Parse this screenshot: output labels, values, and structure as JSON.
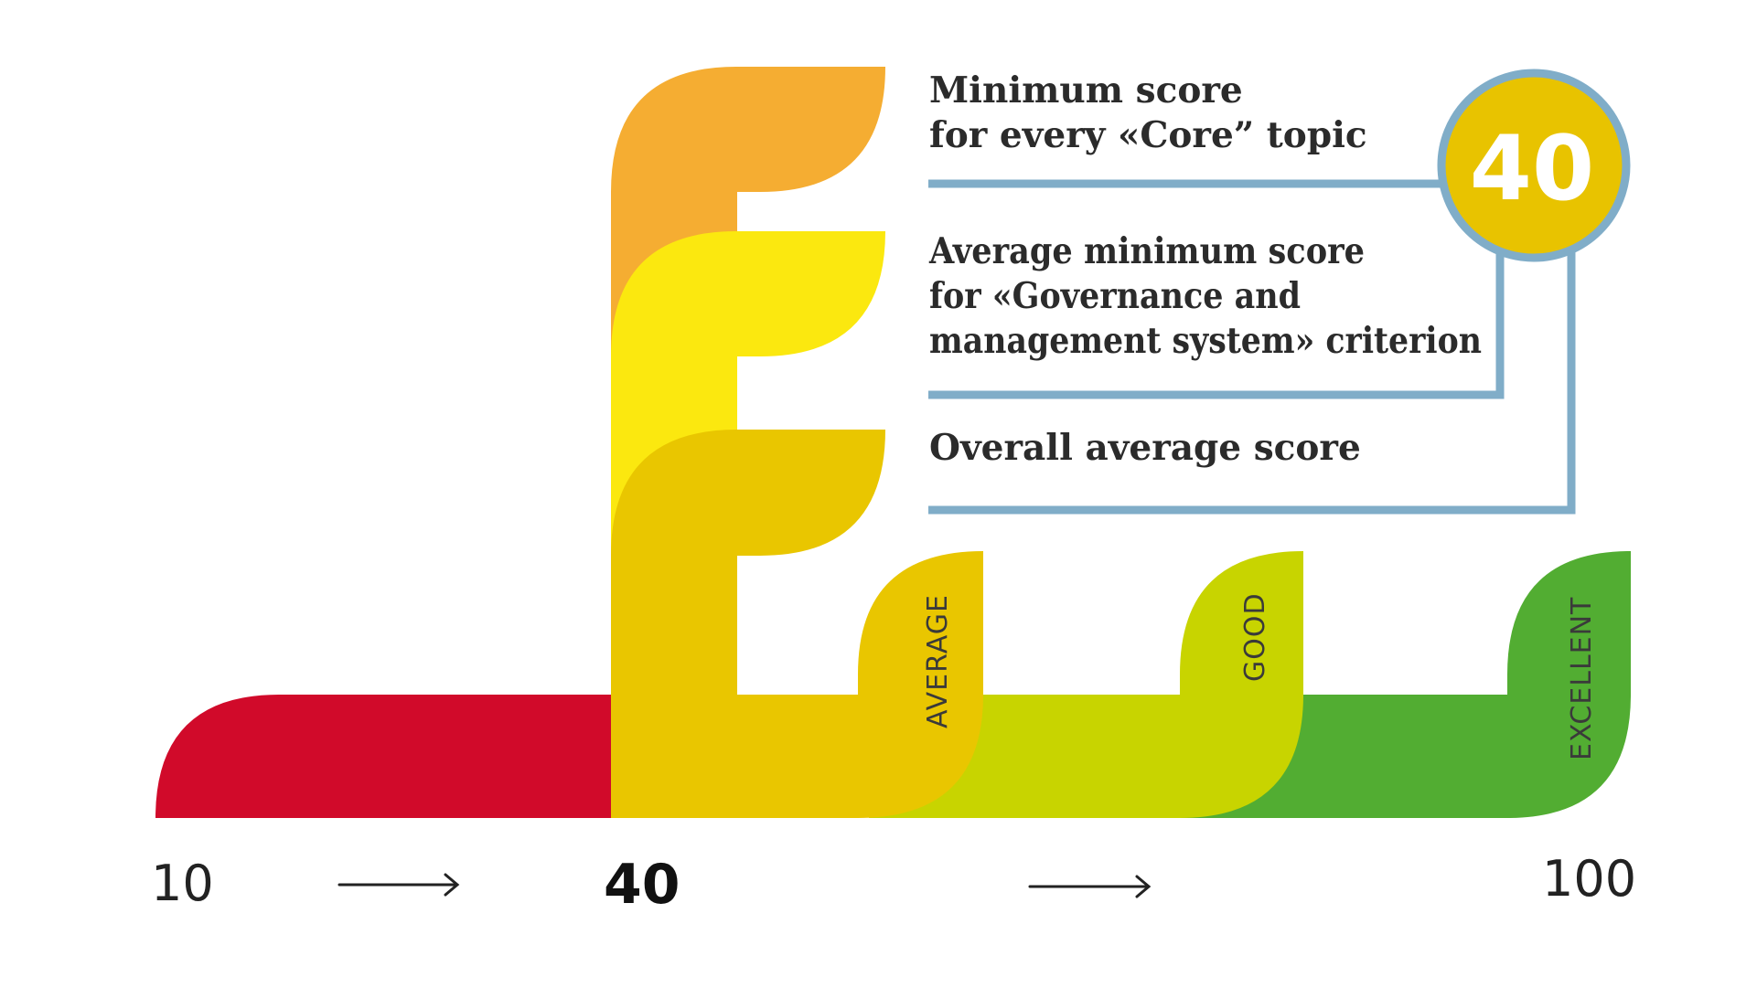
{
  "statements": {
    "core": [
      "Minimum score",
      "for every «Core” topic"
    ],
    "governance": [
      "Average minimum score",
      "for «Governance and",
      "management system» criterion"
    ],
    "overall": [
      "Overall average score"
    ]
  },
  "badge": {
    "value": "40"
  },
  "levels": {
    "average": "AVERAGE",
    "good": "GOOD",
    "excellent": "EXCELLENT"
  },
  "scale": {
    "min": "10",
    "threshold": "40",
    "max": "100"
  },
  "colors": {
    "red": "#d10a2a",
    "orange": "#f5ad32",
    "bright_yellow": "#fbe80f",
    "gold_yellow": "#e9c600",
    "yellow_green": "#c8d400",
    "green": "#52ad32",
    "connector_blue": "#80adc8",
    "badge_fill": "#e8c300"
  },
  "icons": {
    "arrow_1": "right-arrow-icon",
    "arrow_2": "right-arrow-icon"
  }
}
